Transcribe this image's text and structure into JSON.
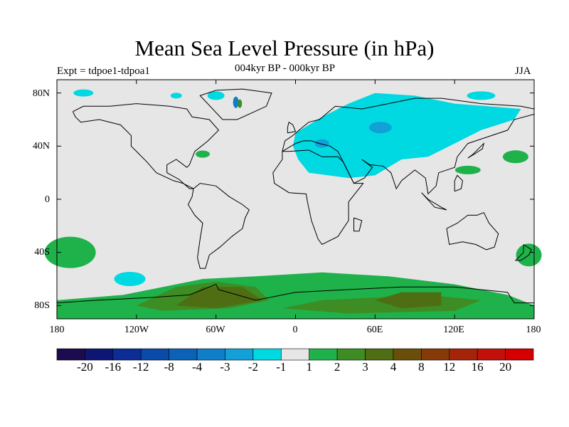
{
  "header": {
    "title": "Mean Sea Level Pressure (in hPa)",
    "experiment": "Expt = tdpoe1-tdpoa1",
    "period": "004kyr BP - 000kyr BP",
    "season": "JJA"
  },
  "axes": {
    "lat_labels": [
      "80N",
      "40N",
      "0",
      "40S",
      "80S"
    ],
    "lon_labels": [
      "180",
      "120W",
      "60W",
      "0",
      "60E",
      "120E",
      "180"
    ]
  },
  "colorbar": {
    "colors": [
      "#1c0b4f",
      "#0d1773",
      "#0b2d95",
      "#0a4aa8",
      "#0c62b6",
      "#0e7fc8",
      "#12a0d6",
      "#00d8e2",
      "#e6e6e6",
      "#1fb14a",
      "#3e8c24",
      "#4f6d12",
      "#6a4f0a",
      "#863a0a",
      "#a32408",
      "#c2100b",
      "#d40000"
    ],
    "labels": [
      "-20",
      "-16",
      "-12",
      "-8",
      "-4",
      "-3",
      "-2",
      "-1",
      "1",
      "2",
      "3",
      "4",
      "8",
      "12",
      "16",
      "20"
    ]
  },
  "map_colors": {
    "background": "#e6e6e6",
    "neg1": "#00d8e2",
    "neg2": "#12a0d6",
    "neg3": "#0e7fc8",
    "pos1": "#1fb14a",
    "pos2": "#3e8c24",
    "pos3": "#4f6d12",
    "coast": "#000000"
  }
}
